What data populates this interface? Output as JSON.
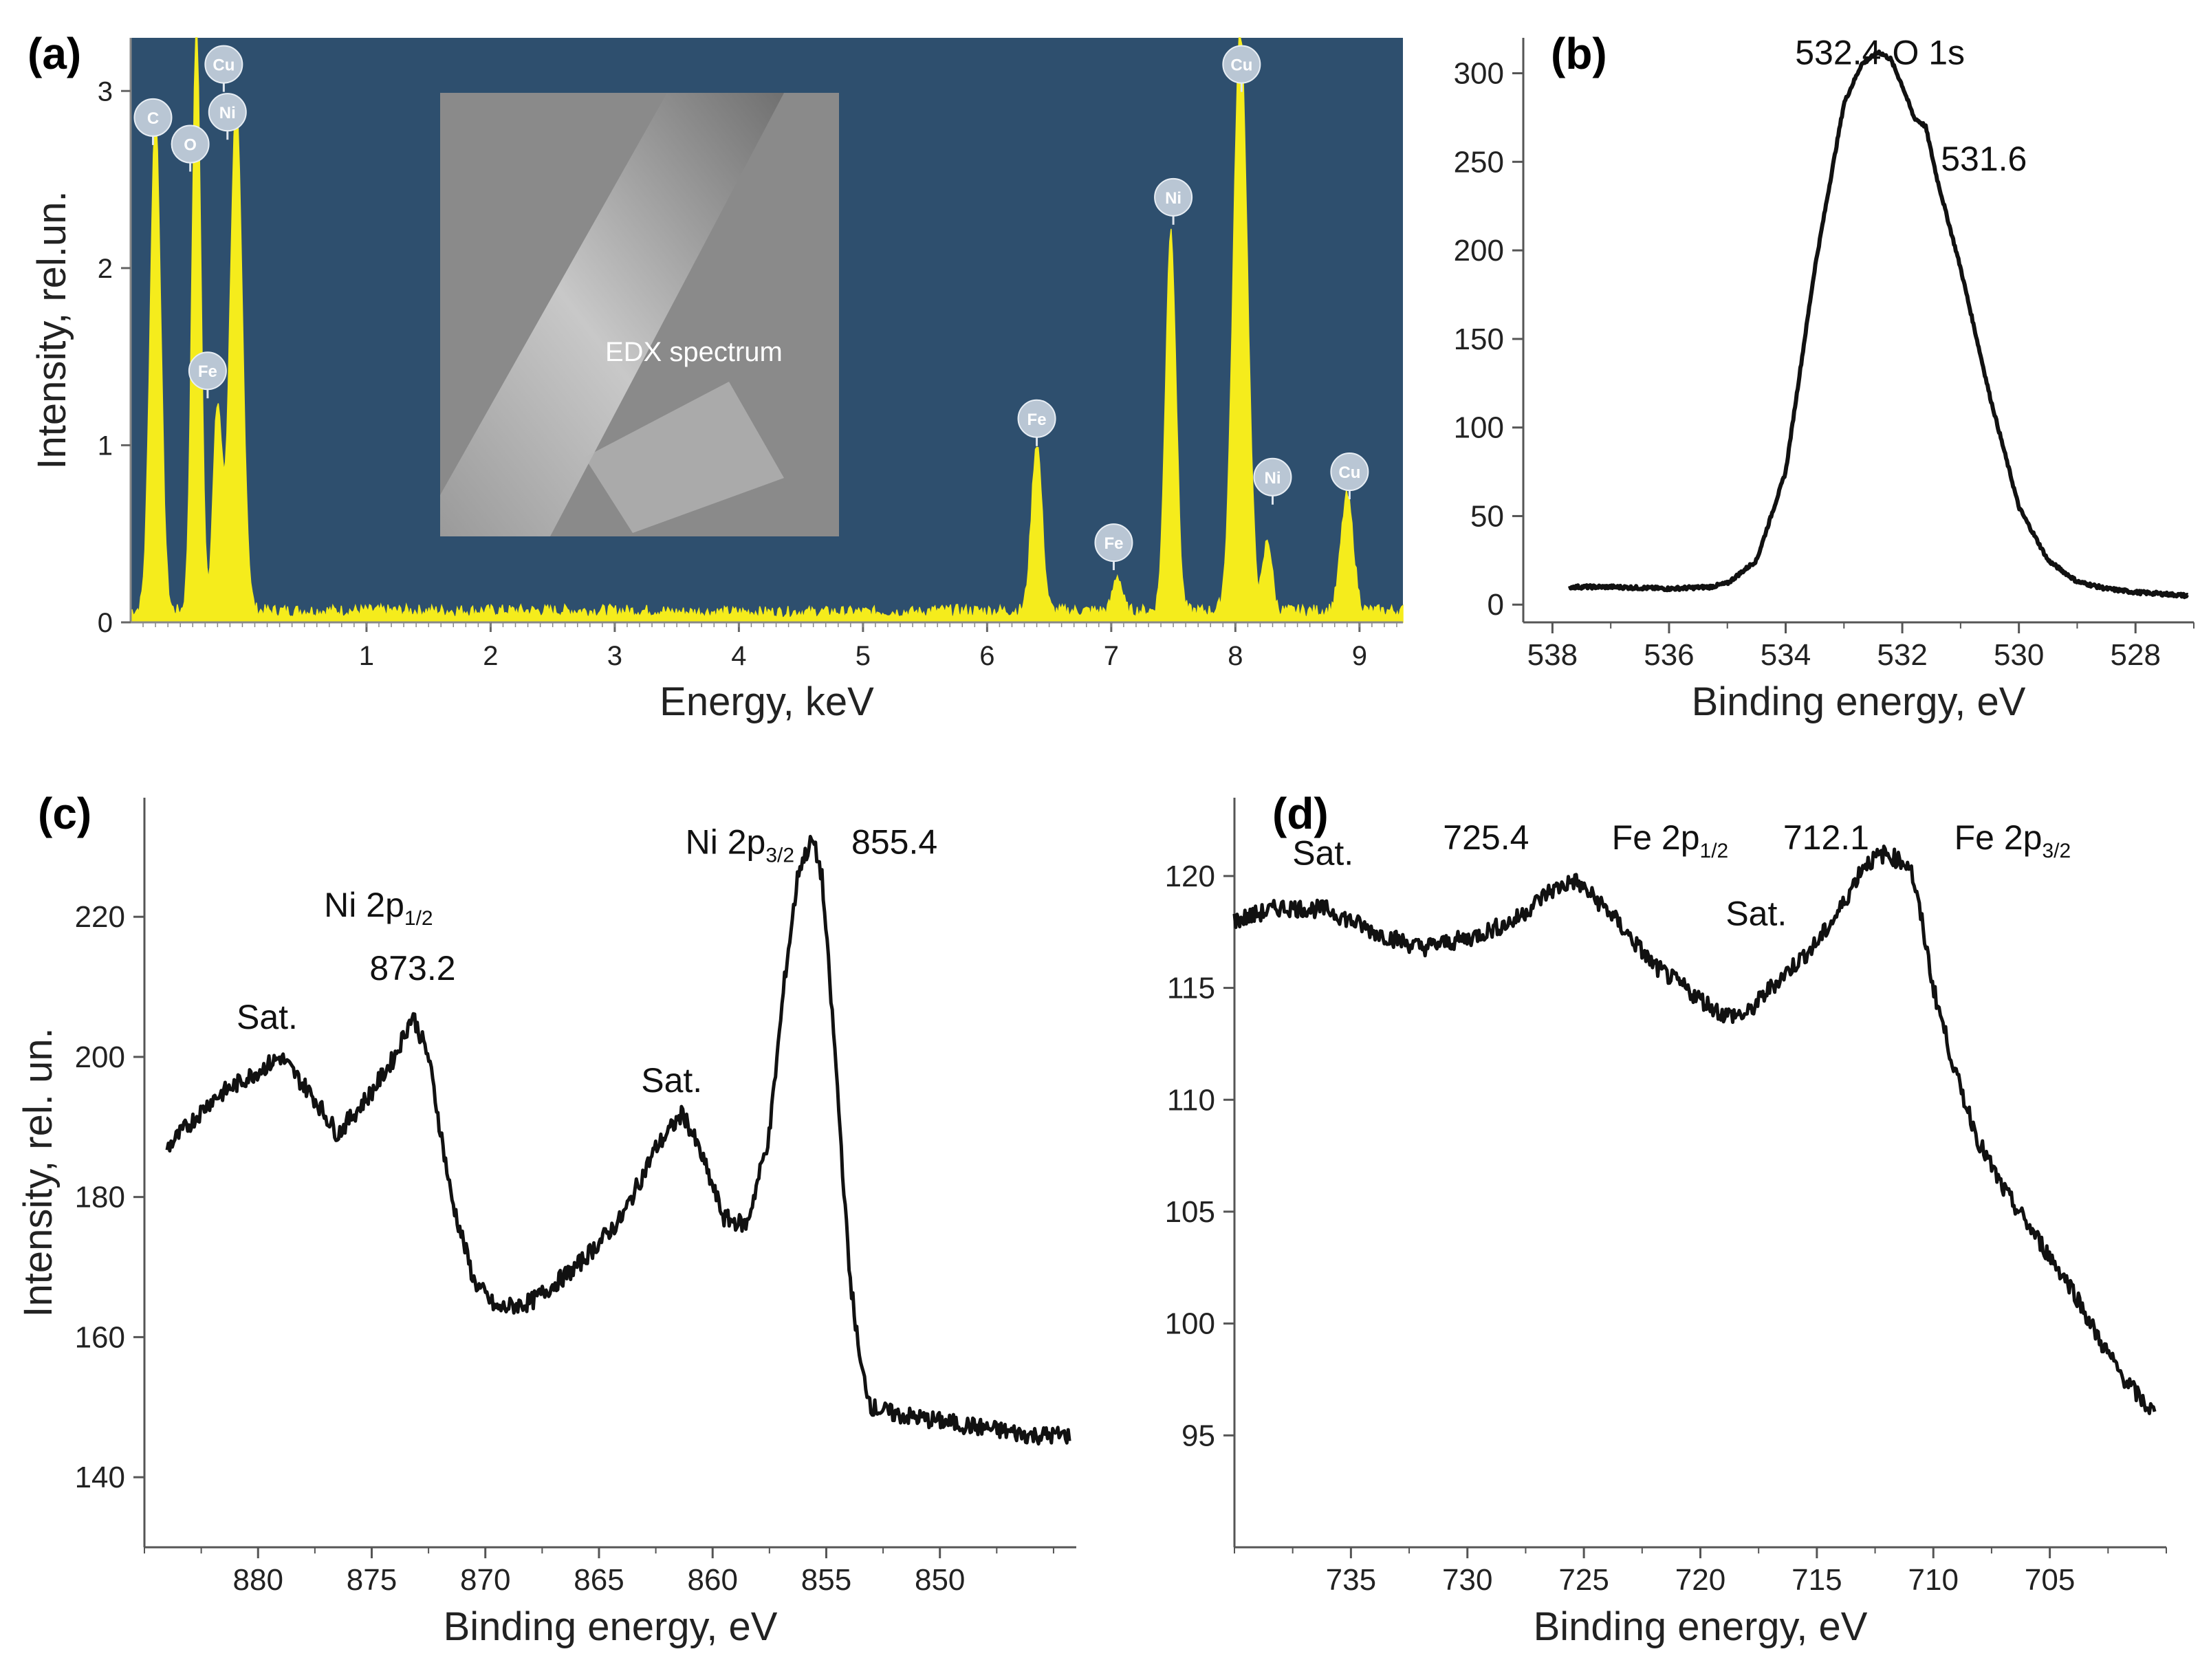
{
  "colors": {
    "edx_background": "#2e4f6e",
    "edx_fill": "#f5ec1c",
    "edx_axis": "#888888",
    "line": "#111111",
    "badge": "#b9c6d4",
    "inset": "#8a8a8a"
  },
  "chart_data": [
    {
      "id": "a",
      "panel_label": "(a)",
      "type": "area",
      "xlabel": "Energy, keV",
      "ylabel": "Intensity, rel.un.",
      "xlim": [
        -0.9,
        9.35
      ],
      "ylim": [
        0,
        3.3
      ],
      "xticks": [
        1,
        2,
        3,
        4,
        5,
        6,
        7,
        8,
        9
      ],
      "yticks": [
        0,
        1,
        2,
        3
      ],
      "peaks": [
        {
          "x": -0.7,
          "height": 2.8,
          "width": 0.06
        },
        {
          "x": -0.37,
          "height": 3.3,
          "width": 0.05
        },
        {
          "x": -0.2,
          "height": 1.15,
          "width": 0.05
        },
        {
          "x": -0.05,
          "height": 2.85,
          "width": 0.07
        },
        {
          "x": 6.4,
          "height": 0.95,
          "width": 0.06
        },
        {
          "x": 7.05,
          "height": 0.2,
          "width": 0.05
        },
        {
          "x": 7.48,
          "height": 2.15,
          "width": 0.06
        },
        {
          "x": 8.04,
          "height": 3.3,
          "width": 0.08
        },
        {
          "x": 8.26,
          "height": 0.4,
          "width": 0.05
        },
        {
          "x": 8.9,
          "height": 0.65,
          "width": 0.07
        }
      ],
      "baseline": 0.06,
      "element_labels": [
        {
          "label": "C",
          "x": -0.72,
          "y": 2.85
        },
        {
          "label": "O",
          "x": -0.42,
          "y": 2.7
        },
        {
          "label": "Cu",
          "x": -0.15,
          "y": 3.15
        },
        {
          "label": "Ni",
          "x": -0.12,
          "y": 2.88
        },
        {
          "label": "Fe",
          "x": -0.28,
          "y": 1.42
        },
        {
          "label": "Fe",
          "x": 6.4,
          "y": 1.15
        },
        {
          "label": "Fe",
          "x": 7.02,
          "y": 0.45
        },
        {
          "label": "Ni",
          "x": 7.5,
          "y": 2.4
        },
        {
          "label": "Cu",
          "x": 8.05,
          "y": 3.15
        },
        {
          "label": "Ni",
          "x": 8.3,
          "y": 0.82
        },
        {
          "label": "Cu",
          "x": 8.92,
          "y": 0.85
        }
      ],
      "inset_label": "EDX spectrum"
    },
    {
      "id": "b",
      "panel_label": "(b)",
      "type": "line",
      "xlabel": "Binding energy, eV",
      "ylabel": "",
      "xlim": [
        538.5,
        527
      ],
      "ylim": [
        -10,
        320
      ],
      "xticks": [
        538,
        536,
        534,
        532,
        530,
        528
      ],
      "yticks": [
        0,
        50,
        100,
        150,
        200,
        250,
        300
      ],
      "series": [
        {
          "name": "O 1s",
          "x": [
            537.7,
            537,
            536,
            535.3,
            535,
            534.5,
            534,
            533.5,
            533,
            532.7,
            532.4,
            532.2,
            532,
            531.8,
            531.6,
            531.4,
            531,
            530.5,
            530,
            529.5,
            529,
            528.5,
            528,
            527.5,
            527.1
          ],
          "y": [
            10,
            10,
            9,
            10,
            12,
            25,
            75,
            190,
            283,
            305,
            312,
            308,
            293,
            275,
            270,
            240,
            190,
            118,
            55,
            25,
            13,
            9,
            7,
            6,
            5
          ]
        }
      ],
      "annotations": [
        {
          "text": "532.4",
          "x": 533.1,
          "y": 305
        },
        {
          "text": "O 1s",
          "x": 531.55,
          "y": 305
        },
        {
          "text": "531.6",
          "x": 530.6,
          "y": 245
        }
      ]
    },
    {
      "id": "c",
      "panel_label": "(c)",
      "type": "line",
      "xlabel": "Binding energy, eV",
      "ylabel": "Intensity, rel. un.",
      "xlim": [
        885,
        844
      ],
      "ylim": [
        130,
        237
      ],
      "xticks": [
        880,
        875,
        870,
        865,
        860,
        855,
        850
      ],
      "yticks": [
        140,
        160,
        180,
        200,
        220
      ],
      "series": [
        {
          "name": "Ni 2p",
          "x": [
            884,
            882,
            880,
            879,
            877.5,
            876.5,
            875,
            874,
            873.2,
            872.5,
            871.5,
            870.5,
            869.5,
            868,
            866,
            864,
            862.5,
            861.3,
            860.5,
            859.5,
            858.5,
            857.5,
            856.8,
            856.2,
            855.6,
            855.2,
            854.6,
            854,
            853.5,
            853,
            852,
            850,
            848,
            846,
            844.3
          ],
          "y": [
            187,
            194,
            198,
            200,
            194,
            189,
            195,
            200,
            206,
            200,
            180,
            168,
            164,
            165,
            170,
            177,
            187,
            192,
            186,
            177,
            176,
            189,
            212,
            227,
            231,
            226,
            200,
            170,
            156,
            150,
            149,
            148,
            147,
            146,
            146
          ]
        }
      ],
      "annotations": [
        {
          "text": "Sat.",
          "x": 879.6,
          "y": 204
        },
        {
          "text": "Ni 2p",
          "sub": "1/2",
          "x": 874.7,
          "y": 220
        },
        {
          "text": "873.2",
          "x": 873.2,
          "y": 211
        },
        {
          "text": "Sat.",
          "x": 861.8,
          "y": 195
        },
        {
          "text": "Ni 2p",
          "sub": "3/2",
          "x": 858.8,
          "y": 229
        },
        {
          "text": "855.4",
          "x": 852,
          "y": 229
        }
      ]
    },
    {
      "id": "d",
      "panel_label": "(d)",
      "type": "line",
      "xlabel": "Binding energy, eV",
      "ylabel": "",
      "xlim": [
        740,
        700
      ],
      "ylim": [
        90,
        123.5
      ],
      "xticks": [
        735,
        730,
        725,
        720,
        715,
        710,
        705
      ],
      "yticks": [
        95,
        100,
        105,
        110,
        115,
        120
      ],
      "series": [
        {
          "name": "Fe 2p",
          "x": [
            740,
            738,
            736,
            734,
            732,
            730,
            728,
            726.5,
            725.4,
            724,
            722,
            720,
            719,
            718,
            717,
            716,
            715,
            714,
            713,
            712.1,
            711,
            710.5,
            710,
            709,
            708,
            707,
            706,
            705,
            704,
            703,
            702,
            701,
            700.5
          ],
          "y": [
            118,
            118.6,
            118.5,
            117.5,
            116.8,
            117.2,
            118,
            119.3,
            119.8,
            118.5,
            116,
            114.5,
            113.8,
            113.8,
            115,
            116,
            117,
            118.5,
            120.5,
            121,
            120.5,
            118,
            115,
            111,
            108,
            106,
            104.5,
            103,
            101.5,
            99.5,
            97.8,
            96.5,
            96
          ]
        }
      ],
      "annotations": [
        {
          "text": "Sat.",
          "x": 736.2,
          "y": 120.5
        },
        {
          "text": "725.4",
          "x": 729.2,
          "y": 121.2
        },
        {
          "text": "Fe 2p",
          "sub": "1/2",
          "x": 721.3,
          "y": 121.2
        },
        {
          "text": "712.1",
          "x": 714.6,
          "y": 121.2
        },
        {
          "text": "Sat.",
          "x": 717.6,
          "y": 117.8
        },
        {
          "text": "Fe 2p",
          "sub": "3/2",
          "x": 706.6,
          "y": 121.2
        }
      ]
    }
  ]
}
